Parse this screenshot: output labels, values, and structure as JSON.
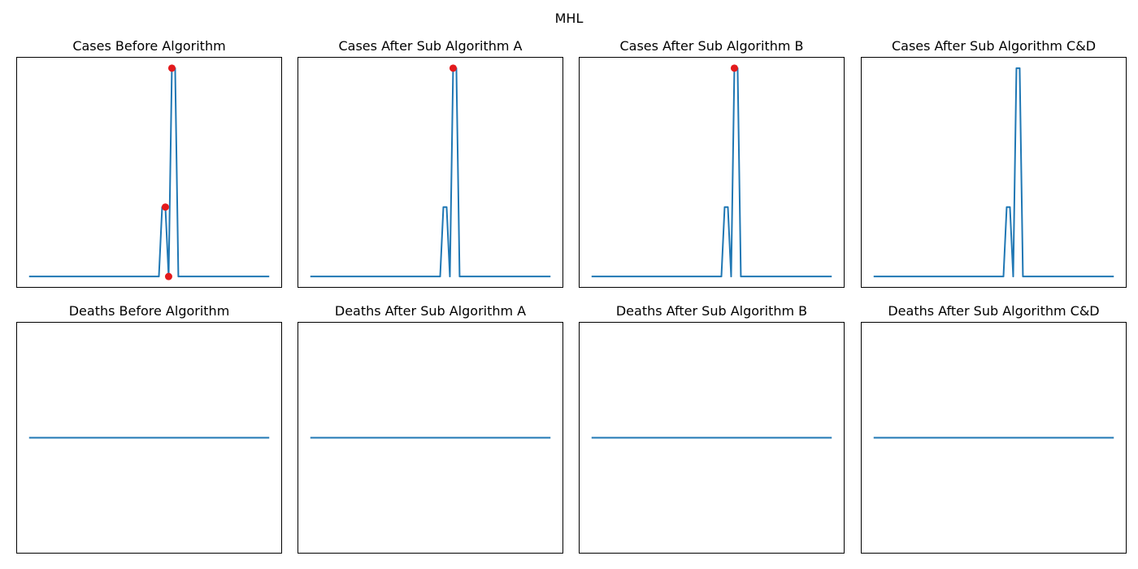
{
  "figure": {
    "title": "MHL"
  },
  "colors": {
    "line": "#1f77b4",
    "marker": "#e31a1c"
  },
  "chart_data": [
    {
      "type": "line",
      "title": "Cases Before Algorithm",
      "x": [
        0,
        1,
        2,
        3,
        4,
        5,
        6,
        7,
        8,
        9,
        10,
        11,
        12,
        13,
        14,
        15,
        16,
        17,
        18,
        19,
        20,
        21,
        22,
        23,
        24,
        25,
        26,
        27,
        28,
        29,
        30,
        31,
        32,
        33,
        34,
        35,
        36,
        37,
        38,
        39,
        40,
        41,
        42,
        43,
        44,
        45,
        46,
        47,
        48,
        49,
        50,
        51,
        52,
        53,
        54,
        55,
        56,
        57,
        58,
        59,
        60,
        61,
        62,
        63,
        64,
        65,
        66,
        67,
        68,
        69,
        70,
        71,
        72,
        73,
        74
      ],
      "values": [
        0,
        0,
        0,
        0,
        0,
        0,
        0,
        0,
        0,
        0,
        0,
        0,
        0,
        0,
        0,
        0,
        0,
        0,
        0,
        0,
        0,
        0,
        0,
        0,
        0,
        0,
        0,
        0,
        0,
        0,
        0,
        0,
        0,
        0,
        0,
        0,
        0,
        0,
        0,
        0,
        0,
        1,
        1,
        0,
        3,
        3,
        0,
        0,
        0,
        0,
        0,
        0,
        0,
        0,
        0,
        0,
        0,
        0,
        0,
        0,
        0,
        0,
        0,
        0,
        0,
        0,
        0,
        0,
        0,
        0,
        0,
        0,
        0,
        0,
        0
      ],
      "markers": [
        {
          "x": 42,
          "y": 1
        },
        {
          "x": 43,
          "y": 0
        },
        {
          "x": 44,
          "y": 3
        }
      ],
      "ylim": [
        -0.15,
        3.15
      ]
    },
    {
      "type": "line",
      "title": "Cases After Sub Algorithm A",
      "x": [
        0,
        1,
        2,
        3,
        4,
        5,
        6,
        7,
        8,
        9,
        10,
        11,
        12,
        13,
        14,
        15,
        16,
        17,
        18,
        19,
        20,
        21,
        22,
        23,
        24,
        25,
        26,
        27,
        28,
        29,
        30,
        31,
        32,
        33,
        34,
        35,
        36,
        37,
        38,
        39,
        40,
        41,
        42,
        43,
        44,
        45,
        46,
        47,
        48,
        49,
        50,
        51,
        52,
        53,
        54,
        55,
        56,
        57,
        58,
        59,
        60,
        61,
        62,
        63,
        64,
        65,
        66,
        67,
        68,
        69,
        70,
        71,
        72,
        73,
        74
      ],
      "values": [
        0,
        0,
        0,
        0,
        0,
        0,
        0,
        0,
        0,
        0,
        0,
        0,
        0,
        0,
        0,
        0,
        0,
        0,
        0,
        0,
        0,
        0,
        0,
        0,
        0,
        0,
        0,
        0,
        0,
        0,
        0,
        0,
        0,
        0,
        0,
        0,
        0,
        0,
        0,
        0,
        0,
        1,
        1,
        0,
        3,
        3,
        0,
        0,
        0,
        0,
        0,
        0,
        0,
        0,
        0,
        0,
        0,
        0,
        0,
        0,
        0,
        0,
        0,
        0,
        0,
        0,
        0,
        0,
        0,
        0,
        0,
        0,
        0,
        0,
        0
      ],
      "markers": [
        {
          "x": 44,
          "y": 3
        }
      ],
      "ylim": [
        -0.15,
        3.15
      ]
    },
    {
      "type": "line",
      "title": "Cases After Sub Algorithm B",
      "x": [
        0,
        1,
        2,
        3,
        4,
        5,
        6,
        7,
        8,
        9,
        10,
        11,
        12,
        13,
        14,
        15,
        16,
        17,
        18,
        19,
        20,
        21,
        22,
        23,
        24,
        25,
        26,
        27,
        28,
        29,
        30,
        31,
        32,
        33,
        34,
        35,
        36,
        37,
        38,
        39,
        40,
        41,
        42,
        43,
        44,
        45,
        46,
        47,
        48,
        49,
        50,
        51,
        52,
        53,
        54,
        55,
        56,
        57,
        58,
        59,
        60,
        61,
        62,
        63,
        64,
        65,
        66,
        67,
        68,
        69,
        70,
        71,
        72,
        73,
        74
      ],
      "values": [
        0,
        0,
        0,
        0,
        0,
        0,
        0,
        0,
        0,
        0,
        0,
        0,
        0,
        0,
        0,
        0,
        0,
        0,
        0,
        0,
        0,
        0,
        0,
        0,
        0,
        0,
        0,
        0,
        0,
        0,
        0,
        0,
        0,
        0,
        0,
        0,
        0,
        0,
        0,
        0,
        0,
        1,
        1,
        0,
        3,
        3,
        0,
        0,
        0,
        0,
        0,
        0,
        0,
        0,
        0,
        0,
        0,
        0,
        0,
        0,
        0,
        0,
        0,
        0,
        0,
        0,
        0,
        0,
        0,
        0,
        0,
        0,
        0,
        0,
        0
      ],
      "markers": [
        {
          "x": 44,
          "y": 3
        }
      ],
      "ylim": [
        -0.15,
        3.15
      ]
    },
    {
      "type": "line",
      "title": "Cases After Sub Algorithm C&D",
      "x": [
        0,
        1,
        2,
        3,
        4,
        5,
        6,
        7,
        8,
        9,
        10,
        11,
        12,
        13,
        14,
        15,
        16,
        17,
        18,
        19,
        20,
        21,
        22,
        23,
        24,
        25,
        26,
        27,
        28,
        29,
        30,
        31,
        32,
        33,
        34,
        35,
        36,
        37,
        38,
        39,
        40,
        41,
        42,
        43,
        44,
        45,
        46,
        47,
        48,
        49,
        50,
        51,
        52,
        53,
        54,
        55,
        56,
        57,
        58,
        59,
        60,
        61,
        62,
        63,
        64,
        65,
        66,
        67,
        68,
        69,
        70,
        71,
        72,
        73,
        74
      ],
      "values": [
        0,
        0,
        0,
        0,
        0,
        0,
        0,
        0,
        0,
        0,
        0,
        0,
        0,
        0,
        0,
        0,
        0,
        0,
        0,
        0,
        0,
        0,
        0,
        0,
        0,
        0,
        0,
        0,
        0,
        0,
        0,
        0,
        0,
        0,
        0,
        0,
        0,
        0,
        0,
        0,
        0,
        1,
        1,
        0,
        3,
        3,
        0,
        0,
        0,
        0,
        0,
        0,
        0,
        0,
        0,
        0,
        0,
        0,
        0,
        0,
        0,
        0,
        0,
        0,
        0,
        0,
        0,
        0,
        0,
        0,
        0,
        0,
        0,
        0,
        0
      ],
      "markers": [],
      "ylim": [
        -0.15,
        3.15
      ]
    },
    {
      "type": "line",
      "title": "Deaths Before Algorithm",
      "x": [
        0,
        74
      ],
      "values": [
        0,
        0
      ],
      "markers": [],
      "ylim": [
        -0.055,
        0.055
      ]
    },
    {
      "type": "line",
      "title": "Deaths After Sub Algorithm A",
      "x": [
        0,
        74
      ],
      "values": [
        0,
        0
      ],
      "markers": [],
      "ylim": [
        -0.055,
        0.055
      ]
    },
    {
      "type": "line",
      "title": "Deaths After Sub Algorithm B",
      "x": [
        0,
        74
      ],
      "values": [
        0,
        0
      ],
      "markers": [],
      "ylim": [
        -0.055,
        0.055
      ]
    },
    {
      "type": "line",
      "title": "Deaths After Sub Algorithm C&D",
      "x": [
        0,
        74
      ],
      "values": [
        0,
        0
      ],
      "markers": [],
      "ylim": [
        -0.055,
        0.055
      ]
    }
  ]
}
